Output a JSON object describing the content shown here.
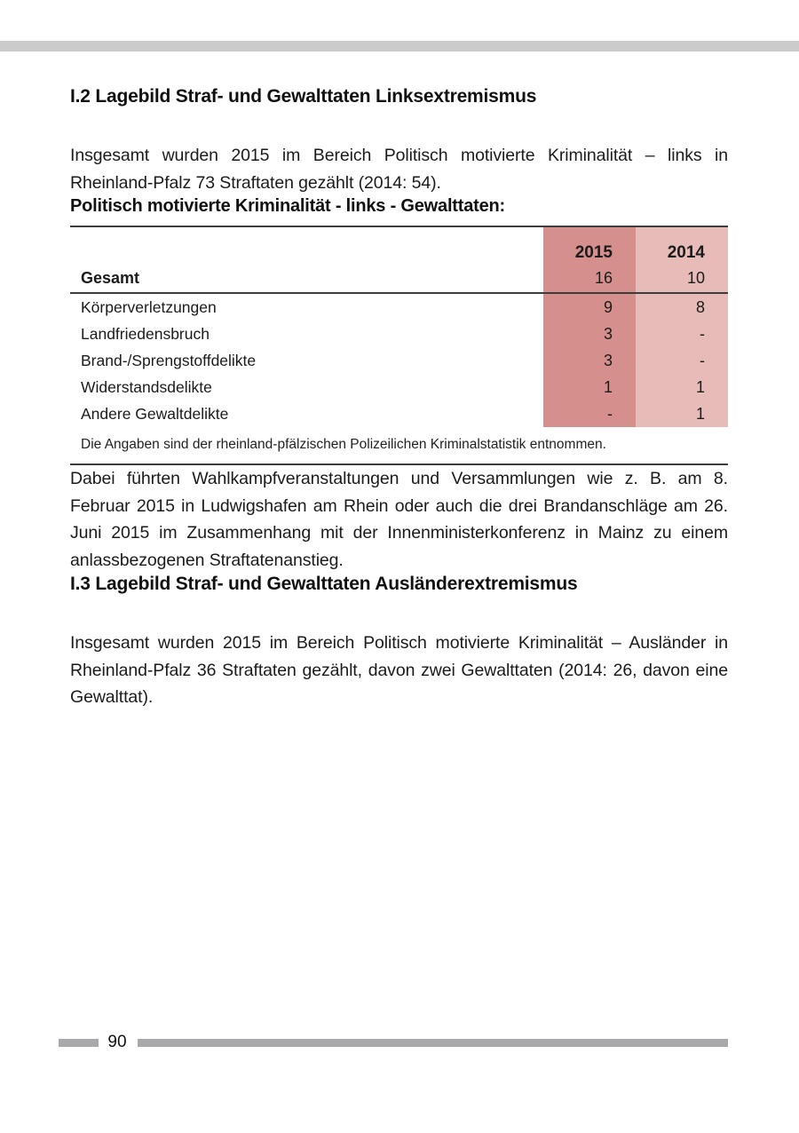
{
  "colors": {
    "col_2015": "#d5908e",
    "col_2014": "#e7bbb8",
    "top_bar": "#cbcbcb",
    "footer_bar": "#a9a9ab",
    "rule": "#3d3d3d"
  },
  "section_i2": {
    "heading": "I.2 Lagebild Straf- und Gewalttaten Linksextremismus",
    "paragraph": "Insgesamt wurden 2015 im Bereich Politisch motivierte Kriminalität – links in Rheinland-Pfalz 73 Straftaten gezählt (2014: 54)."
  },
  "table": {
    "title": "Politisch motivierte Kriminalität - links - Gewalttaten:",
    "columns": [
      "2015",
      "2014"
    ],
    "total_row": {
      "label": "Gesamt",
      "values": [
        "16",
        "10"
      ]
    },
    "rows": [
      {
        "label": "Körperverletzungen",
        "values": [
          "9",
          "8"
        ]
      },
      {
        "label": "Landfriedensbruch",
        "values": [
          "3",
          "-"
        ]
      },
      {
        "label": "Brand-/Sprengstoffdelikte",
        "values": [
          "3",
          "-"
        ]
      },
      {
        "label": "Widerstandsdelikte",
        "values": [
          "1",
          "1"
        ]
      },
      {
        "label": "Andere Gewaltdelikte",
        "values": [
          "-",
          "1"
        ]
      }
    ],
    "footnote": "Die Angaben sind der rheinland-pfälzischen Polizeilichen Kriminalstatistik entnommen."
  },
  "paragraph_events": "Dabei führten Wahlkampfveranstaltungen und Versammlungen wie z. B. am 8. Februar 2015 in Ludwigshafen am Rhein oder auch die drei Brandanschläge am 26. Juni 2015 im Zusammenhang mit der Innenministerkonferenz in Mainz zu einem anlassbezogenen Straftatenanstieg.",
  "section_i3": {
    "heading": "I.3 Lagebild Straf- und Gewalttaten Ausländerextremismus",
    "paragraph": "Insgesamt wurden 2015 im Bereich Politisch motivierte Kriminalität – Ausländer in Rheinland-Pfalz 36 Straftaten gezählt, davon zwei Gewalttaten (2014: 26, davon eine Gewalttat)."
  },
  "page": {
    "number": "90"
  }
}
